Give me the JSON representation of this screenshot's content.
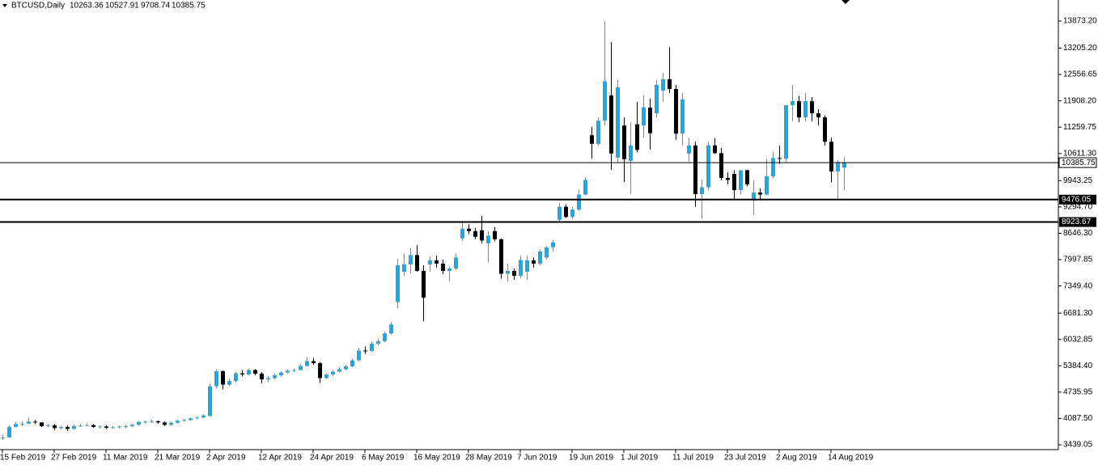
{
  "chart_data": {
    "type": "candlestick",
    "title": "BTCUSD,Daily",
    "categories": [
      "15 Feb 2019",
      null,
      null,
      null,
      null,
      null,
      null,
      null,
      "27 Feb 2019",
      null,
      null,
      null,
      null,
      null,
      null,
      null,
      "11 Mar 2019",
      null,
      null,
      null,
      null,
      null,
      null,
      null,
      "21 Mar 2019",
      null,
      null,
      null,
      null,
      null,
      null,
      null,
      "2 Apr 2019",
      null,
      null,
      null,
      null,
      null,
      null,
      null,
      "12 Apr 2019",
      null,
      null,
      null,
      null,
      null,
      null,
      null,
      "24 Apr 2019",
      null,
      null,
      null,
      null,
      null,
      null,
      null,
      "6 May 2019",
      null,
      null,
      null,
      null,
      null,
      null,
      null,
      "16 May 2019",
      null,
      null,
      null,
      null,
      null,
      null,
      null,
      "28 May 2019",
      null,
      null,
      null,
      null,
      null,
      null,
      null,
      "7 Jun 2019",
      null,
      null,
      null,
      null,
      null,
      null,
      null,
      "19 Jun 2019",
      null,
      null,
      null,
      null,
      null,
      null,
      null,
      "1 Jul 2019",
      null,
      null,
      null,
      null,
      null,
      null,
      null,
      "11 Jul 2019",
      null,
      null,
      null,
      null,
      null,
      null,
      null,
      "23 Jul 2019",
      null,
      null,
      null,
      null,
      null,
      null,
      null,
      "2 Aug 2019",
      null,
      null,
      null,
      null,
      null,
      null,
      null,
      "14 Aug 2019",
      null,
      null
    ],
    "open": [
      3600,
      3620,
      3880,
      3950,
      3960,
      4010,
      3990,
      3900,
      3920,
      3850,
      3880,
      3830,
      3900,
      3910,
      3925,
      3880,
      3890,
      3860,
      3870,
      3890,
      3900,
      3930,
      4000,
      4010,
      4020,
      3990,
      3930,
      3980,
      4030,
      4050,
      4090,
      4110,
      4150,
      4880,
      5250,
      4920,
      5010,
      5200,
      5170,
      5280,
      5190,
      5050,
      5080,
      5150,
      5220,
      5260,
      5280,
      5380,
      5500,
      5450,
      5080,
      5170,
      5240,
      5300,
      5370,
      5520,
      5760,
      5750,
      5930,
      5990,
      6180,
      6950,
      7700,
      7880,
      8110,
      7720,
      7880,
      7980,
      7900,
      7720,
      7780,
      8520,
      8760,
      8700,
      8720,
      8400,
      8700,
      8500,
      7650,
      7720,
      7600,
      7700,
      7980,
      7900,
      8050,
      8300,
      8980,
      9300,
      9050,
      9230,
      9600,
      11060,
      10850,
      11420,
      12040,
      10510,
      11300,
      10430,
      11330,
      11300,
      11740,
      11600,
      12160,
      12440,
      12200,
      11100,
      10610,
      10810,
      9610,
      9780,
      10810,
      10620,
      10010,
      10110,
      9710,
      10200,
      9450,
      9650,
      9600,
      10050,
      10500,
      10480,
      11800,
      11900,
      11500,
      11900,
      11600,
      11500,
      10900,
      10170,
      10263.36
    ],
    "high": [
      3680,
      3920,
      4000,
      4020,
      4120,
      4050,
      3990,
      3960,
      3960,
      3910,
      3920,
      3940,
      3960,
      3970,
      3950,
      3920,
      3920,
      3900,
      3910,
      3930,
      3950,
      4030,
      4040,
      4060,
      4040,
      4020,
      4010,
      4060,
      4080,
      4110,
      4140,
      4200,
      4950,
      5300,
      5270,
      5080,
      5240,
      5280,
      5320,
      5300,
      5230,
      5130,
      5180,
      5250,
      5290,
      5320,
      5430,
      5600,
      5580,
      5480,
      5210,
      5280,
      5340,
      5420,
      5560,
      5820,
      5860,
      5980,
      6050,
      6220,
      6450,
      8020,
      8150,
      8280,
      8350,
      7860,
      8080,
      8100,
      8000,
      7830,
      8150,
      8930,
      8870,
      8780,
      9080,
      8700,
      8800,
      8520,
      7900,
      7780,
      8100,
      8100,
      8050,
      8250,
      8340,
      8480,
      9390,
      9360,
      9300,
      9720,
      10020,
      11270,
      11500,
      13870,
      13350,
      12430,
      11500,
      11380,
      11880,
      12050,
      11960,
      12420,
      12600,
      13230,
      12300,
      12100,
      11000,
      10900,
      9960,
      10900,
      10990,
      10750,
      10150,
      10200,
      10200,
      10210,
      9950,
      9750,
      10480,
      10660,
      10800,
      11800,
      12300,
      12030,
      12100,
      12000,
      11700,
      11550,
      11000,
      10440,
      10527.91
    ],
    "low": [
      3560,
      3610,
      3860,
      3900,
      3940,
      3950,
      3880,
      3870,
      3800,
      3820,
      3780,
      3820,
      3880,
      3890,
      3860,
      3840,
      3830,
      3830,
      3840,
      3850,
      3870,
      3910,
      3960,
      3980,
      3960,
      3900,
      3910,
      3960,
      4010,
      4030,
      4070,
      4100,
      4130,
      4820,
      4800,
      4880,
      4970,
      5120,
      5140,
      5150,
      4950,
      4980,
      5050,
      5120,
      5190,
      5230,
      5270,
      5360,
      5400,
      4960,
      5060,
      5130,
      5220,
      5260,
      5350,
      5500,
      5680,
      5730,
      5880,
      5960,
      6150,
      6800,
      7600,
      7650,
      7700,
      6480,
      7700,
      7800,
      7640,
      7460,
      7740,
      8460,
      8620,
      8500,
      8400,
      7930,
      8450,
      7530,
      7450,
      7500,
      7540,
      7500,
      7800,
      7850,
      8000,
      8200,
      8950,
      9020,
      8990,
      9200,
      9580,
      10480,
      10800,
      11300,
      10210,
      10400,
      9910,
      9610,
      10640,
      11000,
      10710,
      11500,
      11880,
      12100,
      10950,
      10800,
      10400,
      9300,
      9000,
      9700,
      10600,
      9950,
      9850,
      9470,
      9600,
      9800,
      9110,
      9450,
      9580,
      10000,
      10350,
      10400,
      11400,
      11380,
      11400,
      11400,
      11300,
      10800,
      9900,
      9500,
      9708.74
    ],
    "close": [
      3620,
      3880,
      3950,
      3960,
      4010,
      3990,
      3900,
      3920,
      3850,
      3880,
      3830,
      3900,
      3910,
      3925,
      3880,
      3890,
      3860,
      3870,
      3890,
      3900,
      3930,
      4000,
      4010,
      4020,
      3990,
      3930,
      3980,
      4030,
      4050,
      4090,
      4110,
      4160,
      4880,
      5250,
      4920,
      5010,
      5200,
      5170,
      5280,
      5190,
      5050,
      5080,
      5150,
      5220,
      5260,
      5280,
      5380,
      5500,
      5450,
      5080,
      5170,
      5240,
      5300,
      5370,
      5520,
      5760,
      5750,
      5930,
      5990,
      6180,
      6400,
      7860,
      7880,
      8110,
      7720,
      7060,
      7980,
      7900,
      7720,
      7780,
      8050,
      8760,
      8700,
      8560,
      8470,
      8590,
      8500,
      7650,
      7720,
      7600,
      7990,
      7980,
      7900,
      8200,
      8300,
      8420,
      9300,
      9050,
      9230,
      9600,
      9960,
      10850,
      11420,
      12390,
      10610,
      12240,
      10470,
      10810,
      10700,
      11750,
      11110,
      12300,
      12440,
      12200,
      11100,
      11940,
      10810,
      9610,
      9780,
      10810,
      10620,
      10010,
      9960,
      9710,
      10200,
      9850,
      9650,
      9600,
      10050,
      10500,
      10480,
      11800,
      11900,
      11500,
      11900,
      11600,
      11500,
      10900,
      10170,
      10400,
      10385.75
    ],
    "up_color": "#1ea9e1",
    "down_color": "#000000",
    "levels": [
      9476.05,
      8923.67
    ],
    "ylim": [
      3320,
      14390
    ],
    "yticks": [
      {
        "value": 13873.2,
        "label": "13873.20"
      },
      {
        "value": 13205.2,
        "label": "13205.20"
      },
      12556.65,
      {
        "value": 11908.2,
        "label": "11908.20"
      },
      11259.75,
      {
        "value": 10611.3,
        "label": "10611.30"
      },
      9943.25,
      {
        "value": 9294.7,
        "label": "9294.70"
      },
      {
        "value": 8646.3,
        "label": "8646.30"
      },
      7997.85,
      {
        "value": 7349.4,
        "label": "7349.40"
      },
      {
        "value": 6681.3,
        "label": "6681.30"
      },
      6032.85,
      {
        "value": 5384.4,
        "label": "5384.40"
      },
      4735.95,
      {
        "value": 4087.5,
        "label": "4087.50"
      },
      3439.05
    ]
  }
}
